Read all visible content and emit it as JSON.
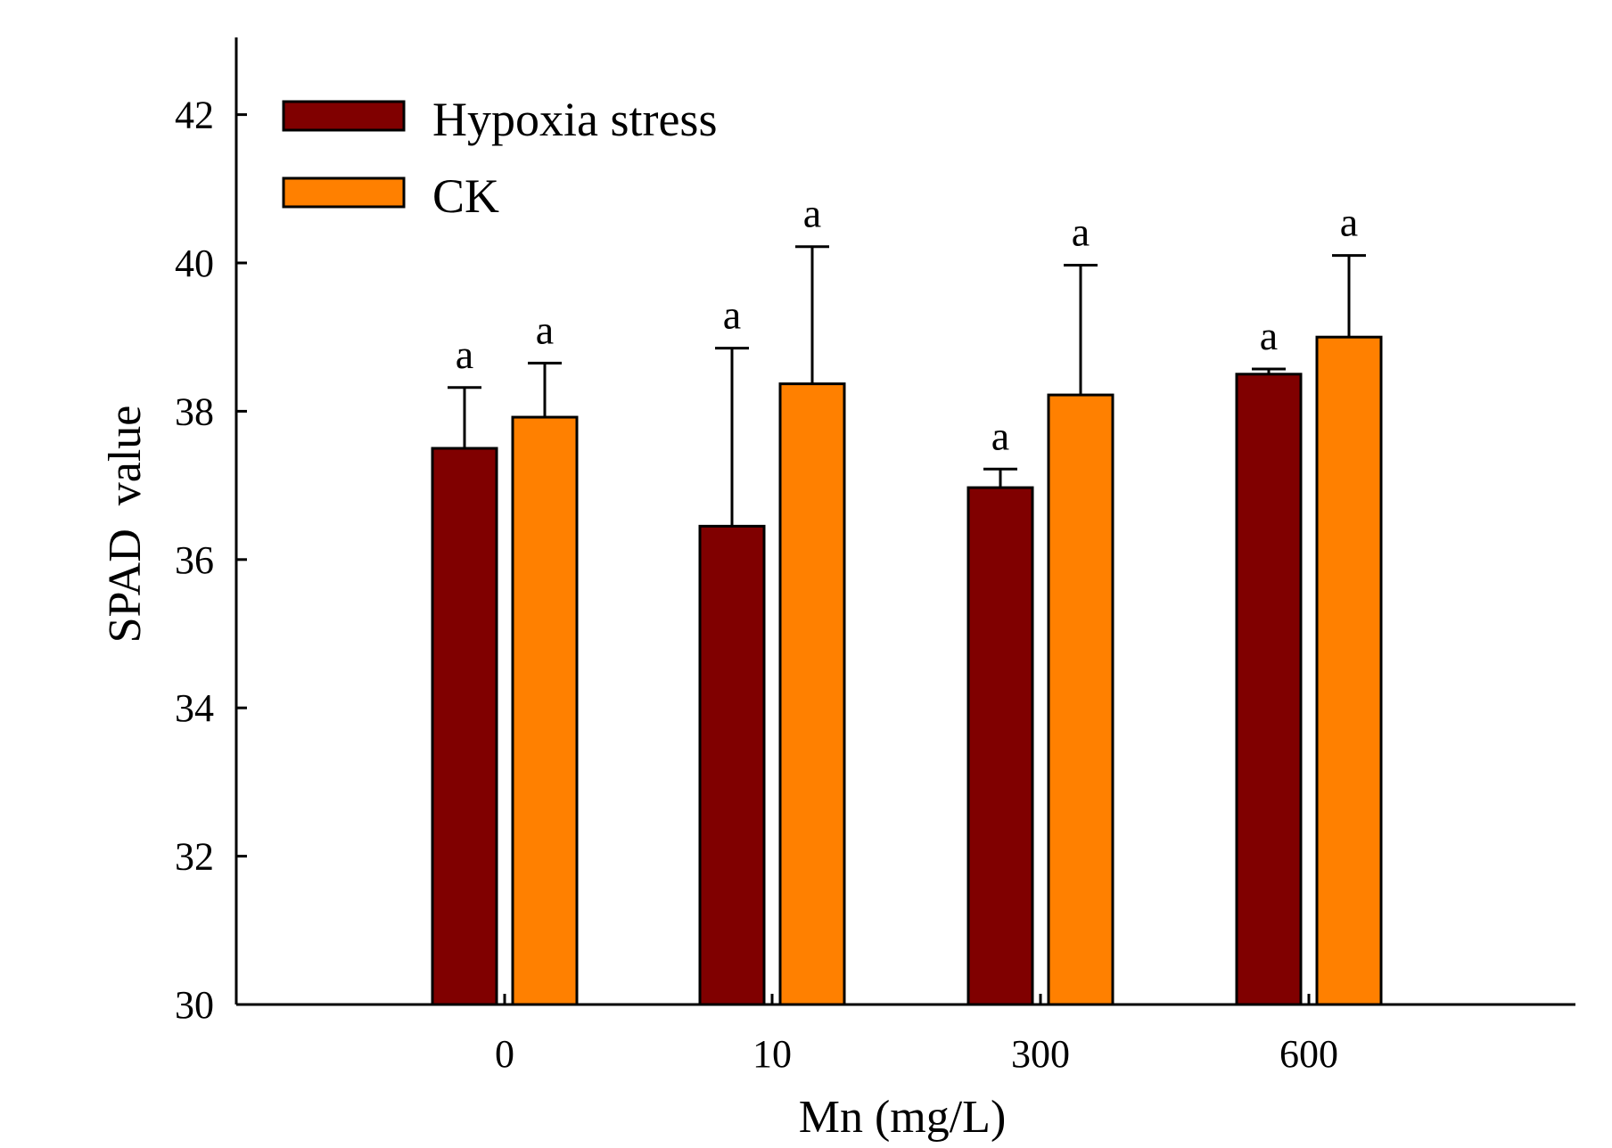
{
  "chart_data": {
    "type": "bar",
    "title": "",
    "xlabel": "Mn (mg/L)",
    "ylabel": "SPAD  value",
    "categories": [
      "0",
      "10",
      "300",
      "600"
    ],
    "ylim": [
      30,
      43
    ],
    "yticks": [
      30,
      32,
      34,
      36,
      38,
      40,
      42
    ],
    "grid": false,
    "legend_position": "top-left",
    "series": [
      {
        "name": "Hypoxia stress",
        "color": "#800000",
        "values": [
          37.5,
          36.45,
          36.97,
          38.5
        ],
        "errors": [
          0.82,
          2.4,
          0.25,
          0.07
        ],
        "labels": [
          "a",
          "a",
          "a",
          "a"
        ]
      },
      {
        "name": "CK",
        "color": "#ff8000",
        "values": [
          37.92,
          38.37,
          38.22,
          39.0
        ],
        "errors": [
          0.73,
          1.85,
          1.75,
          1.1
        ],
        "labels": [
          "a",
          "a",
          "a",
          "a"
        ]
      }
    ]
  }
}
